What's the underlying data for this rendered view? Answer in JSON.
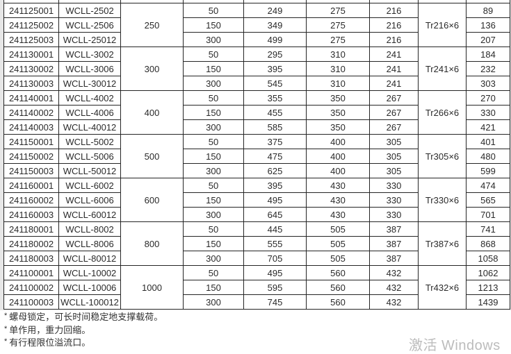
{
  "table": {
    "groups": [
      {
        "capacity": "250",
        "thread": "Tr216×6",
        "rows": [
          {
            "id": "241125001",
            "model": "WCLL-2502",
            "stroke": "50",
            "c5": "249",
            "c6": "275",
            "c7": "216",
            "c9": "89"
          },
          {
            "id": "241125002",
            "model": "WCLL-2506",
            "stroke": "150",
            "c5": "349",
            "c6": "275",
            "c7": "216",
            "c9": "136"
          },
          {
            "id": "241125003",
            "model": "WCLL-25012",
            "stroke": "300",
            "c5": "499",
            "c6": "275",
            "c7": "216",
            "c9": "207"
          }
        ]
      },
      {
        "capacity": "300",
        "thread": "Tr241×6",
        "rows": [
          {
            "id": "241130001",
            "model": "WCLL-3002",
            "stroke": "50",
            "c5": "295",
            "c6": "310",
            "c7": "241",
            "c9": "184"
          },
          {
            "id": "241130002",
            "model": "WCLL-3006",
            "stroke": "150",
            "c5": "395",
            "c6": "310",
            "c7": "241",
            "c9": "232"
          },
          {
            "id": "241130003",
            "model": "WCLL-30012",
            "stroke": "300",
            "c5": "545",
            "c6": "310",
            "c7": "241",
            "c9": "303"
          }
        ]
      },
      {
        "capacity": "400",
        "thread": "Tr266×6",
        "rows": [
          {
            "id": "241140001",
            "model": "WCLL-4002",
            "stroke": "50",
            "c5": "355",
            "c6": "350",
            "c7": "267",
            "c9": "270"
          },
          {
            "id": "241140002",
            "model": "WCLL-4006",
            "stroke": "150",
            "c5": "455",
            "c6": "350",
            "c7": "267",
            "c9": "330"
          },
          {
            "id": "241140003",
            "model": "WCLL-40012",
            "stroke": "300",
            "c5": "585",
            "c6": "350",
            "c7": "267",
            "c9": "421"
          }
        ]
      },
      {
        "capacity": "500",
        "thread": "Tr305×6",
        "rows": [
          {
            "id": "241150001",
            "model": "WCLL-5002",
            "stroke": "50",
            "c5": "375",
            "c6": "400",
            "c7": "305",
            "c9": "401"
          },
          {
            "id": "241150002",
            "model": "WCLL-5006",
            "stroke": "150",
            "c5": "475",
            "c6": "400",
            "c7": "305",
            "c9": "480"
          },
          {
            "id": "241150003",
            "model": "WCLL-50012",
            "stroke": "300",
            "c5": "625",
            "c6": "400",
            "c7": "305",
            "c9": "599"
          }
        ]
      },
      {
        "capacity": "600",
        "thread": "Tr330×6",
        "rows": [
          {
            "id": "241160001",
            "model": "WCLL-6002",
            "stroke": "50",
            "c5": "395",
            "c6": "430",
            "c7": "330",
            "c9": "474"
          },
          {
            "id": "241160002",
            "model": "WCLL-6006",
            "stroke": "150",
            "c5": "495",
            "c6": "430",
            "c7": "330",
            "c9": "565"
          },
          {
            "id": "241160003",
            "model": "WCLL-60012",
            "stroke": "300",
            "c5": "645",
            "c6": "430",
            "c7": "330",
            "c9": "701"
          }
        ]
      },
      {
        "capacity": "800",
        "thread": "Tr387×6",
        "rows": [
          {
            "id": "241180001",
            "model": "WCLL-8002",
            "stroke": "50",
            "c5": "445",
            "c6": "505",
            "c7": "387",
            "c9": "741"
          },
          {
            "id": "241180002",
            "model": "WCLL-8006",
            "stroke": "150",
            "c5": "555",
            "c6": "505",
            "c7": "387",
            "c9": "868"
          },
          {
            "id": "241180003",
            "model": "WCLL-80012",
            "stroke": "300",
            "c5": "705",
            "c6": "505",
            "c7": "387",
            "c9": "1058"
          }
        ]
      },
      {
        "capacity": "1000",
        "thread": "Tr432×6",
        "rows": [
          {
            "id": "241100001",
            "model": "WCLL-10002",
            "stroke": "50",
            "c5": "495",
            "c6": "560",
            "c7": "432",
            "c9": "1062"
          },
          {
            "id": "241100002",
            "model": "WCLL-10006",
            "stroke": "150",
            "c5": "595",
            "c6": "560",
            "c7": "432",
            "c9": "1213"
          },
          {
            "id": "241100003",
            "model": "WCLL-100012",
            "stroke": "300",
            "c5": "745",
            "c6": "560",
            "c7": "432",
            "c9": "1439"
          }
        ]
      }
    ]
  },
  "footnotes": [
    {
      "marker": "*",
      "text": "螺母锁定，可长时间稳定地支撑载荷。"
    },
    {
      "marker": "*",
      "text": "单作用，重力回缩。"
    },
    {
      "marker": "*",
      "text": "有行程限位溢流口。"
    }
  ],
  "watermark": {
    "text": "激活 Windows"
  },
  "colors": {
    "border": "#242424",
    "text": "#2a2a2a",
    "page_background": "#ffffff",
    "margin_gray": "#e7e7e7",
    "watermark": "#bcbcbc"
  }
}
